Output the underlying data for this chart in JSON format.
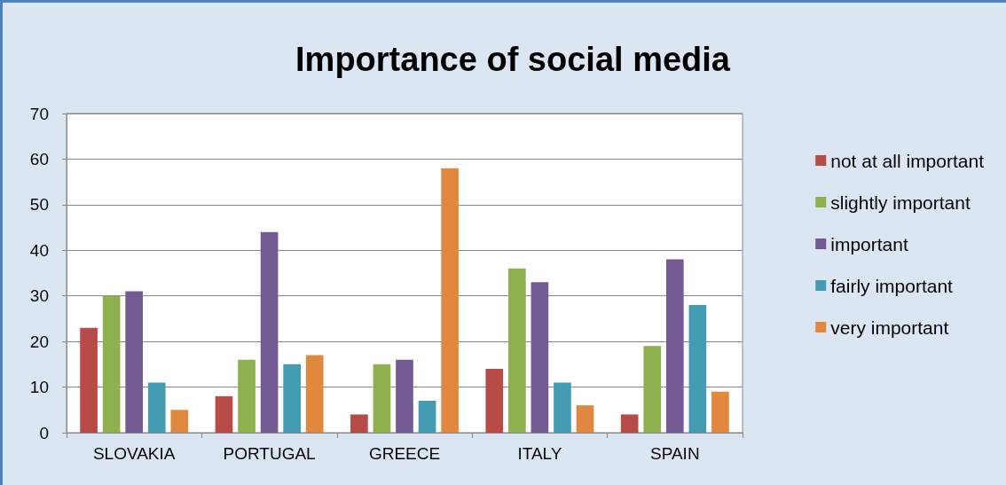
{
  "chart_data": {
    "type": "bar",
    "title": "Importance of social media",
    "categories": [
      "SLOVAKIA",
      "PORTUGAL",
      "GREECE",
      "ITALY",
      "SPAIN"
    ],
    "series": [
      {
        "name": "not at all important",
        "color": "#b84a47",
        "values": [
          23,
          8,
          4,
          14,
          4
        ]
      },
      {
        "name": "slightly important",
        "color": "#8fb04e",
        "values": [
          30,
          16,
          15,
          36,
          19
        ]
      },
      {
        "name": "important",
        "color": "#745a93",
        "values": [
          31,
          44,
          16,
          33,
          38
        ]
      },
      {
        "name": "fairly important",
        "color": "#449cb3",
        "values": [
          11,
          15,
          7,
          11,
          28
        ]
      },
      {
        "name": "very important",
        "color": "#e0883f",
        "values": [
          5,
          17,
          58,
          6,
          9
        ]
      }
    ],
    "ylim": [
      0,
      70
    ],
    "yticks": [
      0,
      10,
      20,
      30,
      40,
      50,
      60,
      70
    ],
    "grid": "y",
    "legend": "right"
  }
}
